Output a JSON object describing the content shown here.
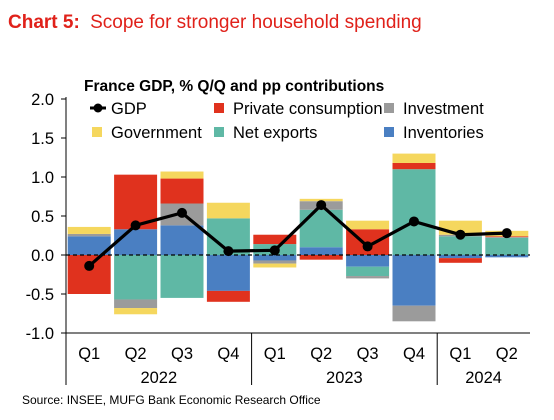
{
  "header": {
    "chart_label": "Chart 5:",
    "chart_title": "Scope for stronger household spending",
    "subtitle": "France GDP, % Q/Q and pp contributions",
    "source": "Source: INSEE, MUFG Bank Economic Research Office"
  },
  "colors": {
    "header_red": "#e0211a",
    "private_consumption": "#e0321e",
    "investment": "#9b9b9b",
    "government": "#f5d75e",
    "net_exports": "#5fb8a5",
    "inventories": "#4a7fc2",
    "gdp": "#000000"
  },
  "chart_data": {
    "type": "bar",
    "stacked": true,
    "title": "France GDP, % Q/Q and pp contributions",
    "categories": [
      "Q1",
      "Q2",
      "Q3",
      "Q4",
      "Q1",
      "Q2",
      "Q3",
      "Q4",
      "Q1",
      "Q2"
    ],
    "year_labels": [
      {
        "label": "2022",
        "quarters": [
          0,
          3
        ]
      },
      {
        "label": "2023",
        "quarters": [
          4,
          7
        ]
      },
      {
        "label": "2024",
        "quarters": [
          8,
          9
        ]
      }
    ],
    "ylim": [
      -1.0,
      2.0
    ],
    "yticks": [
      -1.0,
      -0.5,
      0.0,
      0.5,
      1.0,
      1.5,
      2.0
    ],
    "ytick_labels": [
      "-1.0",
      "-0.5",
      "0.0",
      "0.5",
      "1.0",
      "1.5",
      "2.0"
    ],
    "legend_position": "top",
    "series": [
      {
        "name": "Inventories",
        "color_key": "inventories",
        "values": [
          0.24,
          0.33,
          0.38,
          -0.46,
          -0.07,
          0.1,
          -0.15,
          -0.65,
          -0.04,
          -0.03
        ]
      },
      {
        "name": "Net exports",
        "color_key": "net_exports",
        "values": [
          0.0,
          -0.57,
          -0.55,
          0.47,
          0.14,
          0.48,
          -0.12,
          1.1,
          0.24,
          0.22
        ]
      },
      {
        "name": "Investment",
        "color_key": "investment",
        "values": [
          0.03,
          -0.11,
          0.28,
          0.0,
          -0.04,
          0.11,
          -0.03,
          -0.2,
          0.02,
          0.01
        ]
      },
      {
        "name": "Private consumption",
        "color_key": "private_consumption",
        "values": [
          -0.5,
          0.7,
          0.32,
          -0.14,
          0.12,
          -0.06,
          0.33,
          0.08,
          -0.06,
          0.01
        ]
      },
      {
        "name": "Government",
        "color_key": "government",
        "values": [
          0.09,
          -0.08,
          0.09,
          0.2,
          -0.05,
          0.03,
          0.11,
          0.12,
          0.18,
          0.07
        ]
      }
    ],
    "line_series": {
      "name": "GDP",
      "color_key": "gdp",
      "values": [
        -0.14,
        0.38,
        0.54,
        0.05,
        0.06,
        0.64,
        0.11,
        0.43,
        0.26,
        0.28
      ]
    },
    "legend_order": [
      "GDP",
      "Private consumption",
      "Investment",
      "Government",
      "Net exports",
      "Inventories"
    ]
  }
}
